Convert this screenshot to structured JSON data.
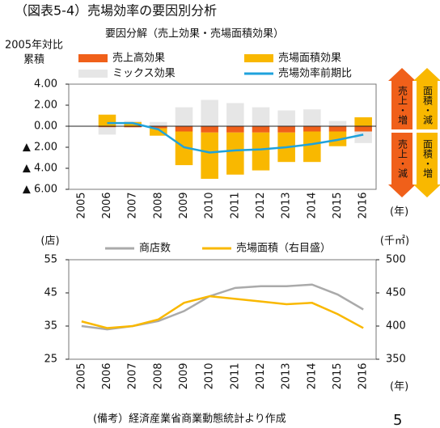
{
  "chart_data": [
    {
      "type": "bar",
      "title": "（図表5-4）売場効率の要因別分析",
      "subtitle": "要因分解（売上効果・売場面積効果）",
      "y_label": [
        "2005年対比",
        "累積"
      ],
      "x_unit": "(年)",
      "categories": [
        "2005",
        "2006",
        "2007",
        "2008",
        "2009",
        "2010",
        "2011",
        "2012",
        "2013",
        "2014",
        "2015",
        "2016"
      ],
      "series": [
        {
          "name": "売上高効果",
          "color": "#f0601a",
          "type": "bar",
          "values": [
            null,
            -0.1,
            -0.1,
            -0.2,
            -0.5,
            -0.6,
            -0.6,
            -0.6,
            -0.6,
            -0.5,
            -0.5,
            -0.5
          ]
        },
        {
          "name": "売場面積効果",
          "color": "#f9b800",
          "type": "bar",
          "values": [
            null,
            1.1,
            0.4,
            -0.7,
            -3.2,
            -4.4,
            -4.0,
            -3.6,
            -2.8,
            -2.9,
            -1.4,
            0.85
          ]
        },
        {
          "name": "ミックス効果",
          "color": "#e6e6e6",
          "type": "bar",
          "values": [
            null,
            -0.7,
            0.1,
            0.4,
            1.8,
            2.5,
            2.2,
            1.8,
            1.5,
            1.6,
            0.5,
            -1.1
          ]
        },
        {
          "name": "売場効率前期比",
          "color": "#1fa2dc",
          "type": "line",
          "values": [
            null,
            0.3,
            0.3,
            -0.3,
            -2.0,
            -2.5,
            -2.3,
            -2.2,
            -2.0,
            -1.7,
            -1.3,
            -0.8
          ]
        }
      ],
      "ylim": [
        -6,
        4
      ],
      "yticks": [
        {
          "value": 4,
          "label": "4.00"
        },
        {
          "value": 2,
          "label": "2.00"
        },
        {
          "value": 0,
          "label": "0.00"
        },
        {
          "value": -2,
          "label": "▲ 2.00"
        },
        {
          "value": -4,
          "label": "▲ 4.00"
        },
        {
          "value": -6,
          "label": "▲ 6.00"
        }
      ],
      "grid": false,
      "legend": "top",
      "annotations": [
        {
          "text": "売上・増",
          "color": "#f0601a",
          "direction": "up",
          "column": 0
        },
        {
          "text": "売上・減",
          "color": "#f0601a",
          "direction": "down",
          "column": 0
        },
        {
          "text": "面積・減",
          "color": "#f9b800",
          "direction": "up",
          "column": 1
        },
        {
          "text": "面積・増",
          "color": "#f9b800",
          "direction": "down",
          "column": 1
        }
      ]
    },
    {
      "type": "line",
      "y_unit": "(店)",
      "y2_unit": "(千㎡)",
      "x_unit": "(年)",
      "categories": [
        "2005",
        "2006",
        "2007",
        "2008",
        "2009",
        "2010",
        "2011",
        "2012",
        "2013",
        "2014",
        "2015",
        "2016"
      ],
      "series": [
        {
          "name": "商店数",
          "color": "#aaaaaa",
          "axis": "y",
          "values": [
            35,
            34,
            35,
            36.5,
            39.5,
            44,
            46.5,
            47,
            47,
            47.5,
            44.5,
            40
          ]
        },
        {
          "name": "売場面積（右目盛）",
          "color": "#f9b800",
          "axis": "y2",
          "values": [
            407,
            397,
            400,
            410,
            435,
            445,
            441,
            437,
            433,
            435,
            418,
            397
          ]
        }
      ],
      "ylim": [
        25,
        55
      ],
      "yticks": [
        25,
        35,
        45,
        55
      ],
      "y2lim": [
        350,
        500
      ],
      "y2ticks": [
        350,
        400,
        450,
        500
      ],
      "grid": false,
      "legend": "top",
      "note": "(備考）経済産業省商業動態統計より作成",
      "page": "5"
    }
  ]
}
